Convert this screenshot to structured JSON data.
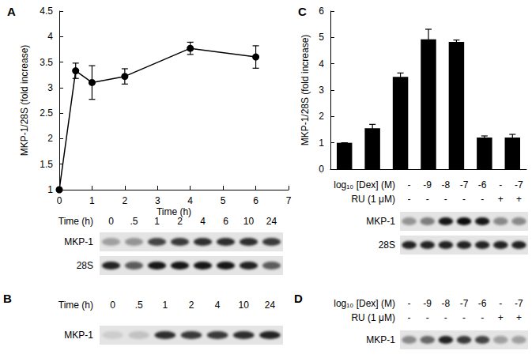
{
  "chart_data": [
    {
      "type": "line",
      "title": "A",
      "x": [
        0,
        0.5,
        1,
        2,
        4,
        6
      ],
      "values": [
        1,
        3.33,
        3.1,
        3.22,
        3.77,
        3.6
      ],
      "errors": [
        0,
        0.15,
        0.33,
        0.15,
        0.12,
        0.22
      ],
      "xlabel": "Time (h)",
      "ylabel": "MKP-1/28S (fold increase)",
      "xlim": [
        0,
        7
      ],
      "xticks": [
        0,
        1,
        2,
        3,
        4,
        5,
        6,
        7
      ],
      "ylim": [
        1,
        4.5
      ],
      "yticks": [
        1,
        1.5,
        2,
        2.5,
        3,
        3.5,
        4,
        4.5
      ],
      "color": "#000000",
      "marker": "circle",
      "grid": false
    },
    {
      "type": "bar",
      "title": "C",
      "categories": [
        null,
        null,
        null,
        null,
        null,
        null,
        null
      ],
      "values": [
        1,
        1.55,
        3.5,
        4.93,
        4.83,
        1.2,
        1.2
      ],
      "errors": [
        0,
        0.15,
        0.15,
        0.38,
        0.07,
        0.06,
        0.12
      ],
      "ylabel": "MKP-1/28S (fold increase)",
      "ylim": [
        0,
        6
      ],
      "yticks": [
        0,
        1,
        2,
        3,
        4,
        5,
        6
      ],
      "color": "#000000",
      "grid": false,
      "tick_labels": "y"
    }
  ],
  "blots": [
    {
      "header": [
        {
          "label": "Time (h)",
          "cells": [
            "0",
            ".5",
            "1",
            "2",
            "4",
            "6",
            "10",
            "24"
          ]
        }
      ],
      "rows": [
        {
          "label": "MKP-1",
          "intensities": [
            0.3,
            0.35,
            0.7,
            0.75,
            0.8,
            0.8,
            0.8,
            0.75
          ]
        },
        {
          "label": "28S",
          "intensities": [
            0.85,
            0.6,
            0.9,
            0.9,
            0.9,
            0.9,
            0.85,
            0.6
          ]
        }
      ]
    },
    {
      "panel": "B",
      "header": [
        {
          "label": "Time (h)",
          "cells": [
            "0",
            ".5",
            "1",
            "2",
            "4",
            "10",
            "24"
          ]
        }
      ],
      "rows": [
        {
          "label": "MKP-1",
          "intensities": [
            0.1,
            0.15,
            0.8,
            0.75,
            0.75,
            0.8,
            0.85
          ]
        }
      ]
    },
    {
      "header": [
        {
          "label": "log₁₀ [Dex] (M)",
          "cells": [
            "-",
            "-9",
            "-8",
            "-7",
            "-6",
            "-",
            "-7"
          ]
        },
        {
          "label": "RU (1 μM)",
          "cells": [
            "-",
            "-",
            "-",
            "-",
            "-",
            "+",
            "+"
          ]
        }
      ],
      "rows": [
        {
          "label": "MKP-1",
          "intensities": [
            0.35,
            0.45,
            0.9,
            0.95,
            0.9,
            0.4,
            0.4
          ]
        },
        {
          "label": "28S",
          "intensities": [
            0.85,
            0.85,
            0.85,
            0.85,
            0.85,
            0.85,
            0.85
          ]
        }
      ]
    },
    {
      "panel": "D",
      "header": [
        {
          "label": "log₁₀ [Dex] (M)",
          "cells": [
            "-",
            "-9",
            "-8",
            "-7",
            "-6",
            "-",
            "-7"
          ]
        },
        {
          "label": "RU (1 μM)",
          "cells": [
            "-",
            "-",
            "-",
            "-",
            "-",
            "+",
            "+"
          ]
        }
      ],
      "rows": [
        {
          "label": "MKP-1",
          "intensities": [
            0.4,
            0.55,
            0.85,
            0.75,
            0.7,
            0.3,
            0.3
          ]
        }
      ]
    }
  ]
}
